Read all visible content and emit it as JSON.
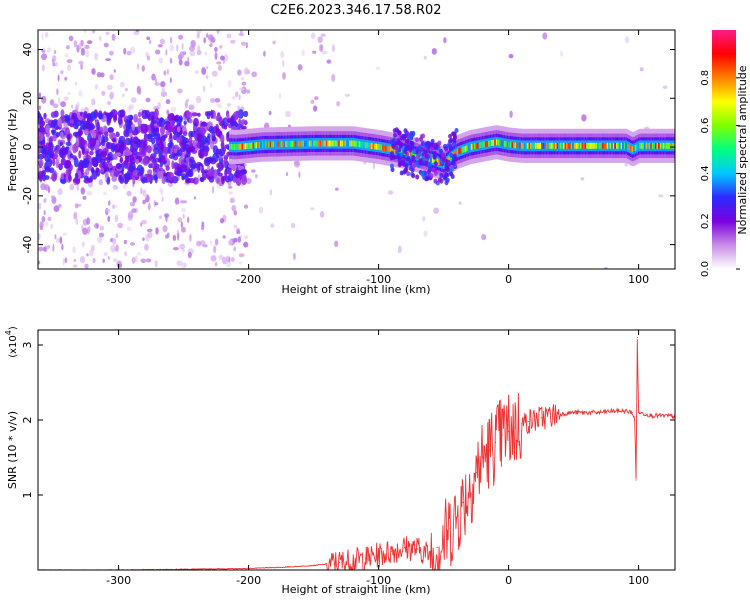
{
  "figure": {
    "title": "C2E6.2023.346.17.58.R02"
  },
  "chart_data": [
    {
      "type": "heatmap",
      "title": "",
      "xlabel": "Height of straight line (km)",
      "ylabel": "Frequency (Hz)",
      "xlim": [
        -362,
        128
      ],
      "ylim": [
        -50,
        48
      ],
      "xticks": [
        -300,
        -200,
        -100,
        0,
        100
      ],
      "yticks": [
        -40,
        -20,
        0,
        20,
        40
      ],
      "colorbar": {
        "label": "Normalized spectral amplitude",
        "range": [
          0,
          1
        ],
        "ticks": [
          0.0,
          0.2,
          0.4,
          0.6,
          0.8
        ],
        "colormap": [
          "#ffffff",
          "#c98ee8",
          "#7b00e0",
          "#2b2bff",
          "#00c8ff",
          "#00ff7f",
          "#7fff00",
          "#ffff00",
          "#ff8000",
          "#ff0000",
          "#ff1a8c"
        ]
      },
      "ridge": {
        "description_points_x": [
          -362,
          -300,
          -250,
          -210,
          -190,
          -150,
          -120,
          -100,
          -80,
          -60,
          -50,
          -45,
          -40,
          -30,
          -20,
          -10,
          0,
          10,
          30,
          60,
          90,
          95,
          100,
          128
        ],
        "description_points_y": [
          1,
          1,
          1,
          0,
          1,
          1.5,
          1.5,
          0,
          -2,
          -5,
          -7,
          -4,
          -2,
          0,
          1,
          2,
          1,
          0.5,
          0.5,
          0.5,
          0.5,
          -1,
          0.5,
          0.5
        ]
      },
      "grid": false
    },
    {
      "type": "line",
      "title": "",
      "xlabel": "Height of straight line (km)",
      "ylabel": "SNR (10 * v/v)",
      "y_multiplier_label": "(x10",
      "y_multiplier_exp": "4",
      "xlim": [
        -362,
        128
      ],
      "ylim": [
        0,
        3.2
      ],
      "xticks": [
        -300,
        -200,
        -100,
        0,
        100
      ],
      "yticks": [
        1,
        2,
        3
      ],
      "grid": false,
      "series": [
        {
          "color": "#ee3333",
          "x": [
            -362,
            -300,
            -250,
            -200,
            -170,
            -150,
            -130,
            -110,
            -100,
            -90,
            -80,
            -70,
            -60,
            -55,
            -50,
            -45,
            -40,
            -35,
            -30,
            -25,
            -20,
            -15,
            -10,
            -5,
            0,
            5,
            10,
            15,
            20,
            25,
            30,
            40,
            50,
            60,
            70,
            80,
            90,
            95,
            97,
            98,
            99,
            100,
            105,
            110,
            128
          ],
          "y": [
            0.0,
            0.0,
            0.01,
            0.02,
            0.04,
            0.06,
            0.1,
            0.15,
            0.2,
            0.25,
            0.3,
            0.28,
            0.2,
            0.3,
            0.4,
            0.55,
            0.7,
            0.9,
            1.1,
            1.3,
            1.5,
            1.6,
            1.7,
            1.8,
            1.85,
            1.9,
            1.95,
            1.98,
            2.0,
            2.03,
            2.05,
            2.08,
            2.1,
            2.1,
            2.1,
            2.12,
            2.12,
            2.1,
            2.0,
            1.2,
            3.1,
            2.1,
            2.08,
            2.06,
            2.05
          ]
        }
      ]
    }
  ]
}
